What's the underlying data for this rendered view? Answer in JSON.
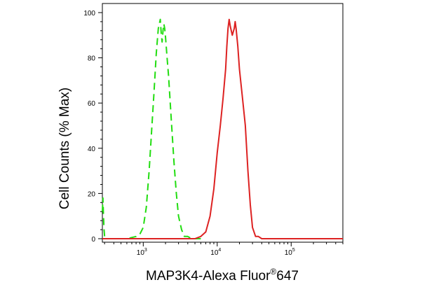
{
  "chart_data": {
    "type": "line",
    "title": "",
    "xlabel": "MAP3K4-Alexa Fluor",
    "xlabel_mark": "®",
    "xlabel_suffix": "647",
    "ylabel": "Cell Counts (% Max)",
    "x_scale": "log",
    "xlim": [
      280,
      500000
    ],
    "ylim": [
      0,
      100
    ],
    "y_ticks": [
      0,
      20,
      40,
      60,
      80,
      100
    ],
    "x_ticks": [
      {
        "value": 1000,
        "base": "10",
        "exp": "3"
      },
      {
        "value": 10000,
        "base": "10",
        "exp": "4"
      },
      {
        "value": 100000,
        "base": "10",
        "exp": "5"
      }
    ],
    "grid": false,
    "legend": "none",
    "series": [
      {
        "color": "#22dd11",
        "dash": "dashed",
        "x": [
          280,
          285,
          290,
          295,
          300,
          310,
          400,
          600,
          800,
          900,
          1000,
          1100,
          1200,
          1300,
          1400,
          1500,
          1600,
          1700,
          1750,
          1800,
          1850,
          1900,
          1950,
          2000,
          2100,
          2200,
          2400,
          2600,
          2800,
          3000,
          3300,
          3600,
          4000,
          4500,
          5000,
          6000
        ],
        "y": [
          12,
          18,
          10,
          4,
          1,
          0,
          0,
          0,
          1,
          2,
          5,
          14,
          30,
          48,
          65,
          82,
          93,
          97,
          91,
          87,
          92,
          95,
          93,
          89,
          80,
          72,
          52,
          34,
          20,
          10,
          4,
          1,
          1,
          0,
          0,
          0
        ]
      },
      {
        "color": "#dd2222",
        "dash": "solid",
        "x": [
          280,
          5000,
          6000,
          7000,
          8000,
          9000,
          10000,
          11000,
          12000,
          13000,
          13500,
          14000,
          14500,
          15000,
          16000,
          17000,
          17500,
          18000,
          19000,
          20000,
          22000,
          24000,
          26000,
          28000,
          30000,
          33000,
          36000,
          40000,
          45000,
          500000
        ],
        "y": [
          0,
          0,
          1,
          3,
          10,
          22,
          38,
          50,
          62,
          75,
          85,
          93,
          97,
          94,
          90,
          93,
          96,
          93,
          85,
          75,
          62,
          50,
          30,
          15,
          5,
          1,
          1,
          0,
          0,
          0
        ]
      }
    ]
  }
}
